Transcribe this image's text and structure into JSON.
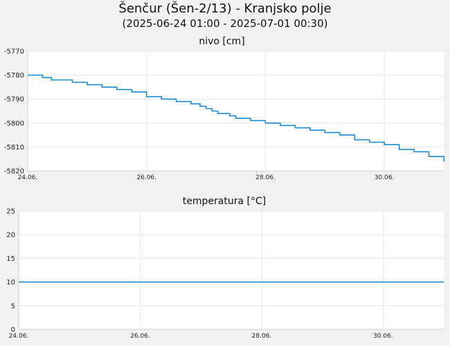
{
  "header": {
    "title": "Šenčur (Šen-2/13) - Kranjsko polje",
    "subtitle": "(2025-06-24 01:00 - 2025-07-01 00:30)"
  },
  "chart_data": [
    {
      "type": "line",
      "title": "nivo [cm]",
      "ylim": [
        -5820,
        -5770
      ],
      "yticks": [
        -5770,
        -5780,
        -5790,
        -5800,
        -5810,
        -5820
      ],
      "xticks": [
        "24.06.",
        "26.06.",
        "28.06.",
        "30.06."
      ],
      "grid": true,
      "color": "#1a8ad4",
      "series": [
        {
          "x": [
            0,
            0.1,
            0.25,
            0.4,
            0.5,
            0.75,
            1.0,
            1.25,
            1.5,
            1.75,
            2.0,
            2.25,
            2.5,
            2.75,
            2.9,
            3.0,
            3.1,
            3.2,
            3.3,
            3.4,
            3.5,
            3.75,
            4.0,
            4.25,
            4.5,
            4.75,
            5.0,
            5.25,
            5.5,
            5.75,
            6.0,
            6.25,
            6.5,
            6.75,
            7.0
          ],
          "values": [
            -5780,
            -5780,
            -5781,
            -5782,
            -5782,
            -5783,
            -5784,
            -5785,
            -5786,
            -5787,
            -5789,
            -5790,
            -5791,
            -5792,
            -5793,
            -5794,
            -5795,
            -5796,
            -5796,
            -5797,
            -5798,
            -5799,
            -5800,
            -5801,
            -5802,
            -5803,
            -5804,
            -5805,
            -5807,
            -5808,
            -5809,
            -5811,
            -5812,
            -5814,
            -5816
          ]
        }
      ]
    },
    {
      "type": "line",
      "title": "temperatura [°C]",
      "ylim": [
        0,
        25
      ],
      "yticks": [
        25,
        20,
        15,
        10,
        5,
        0
      ],
      "xticks": [
        "24.06.",
        "26.06.",
        "28.06.",
        "30.06."
      ],
      "grid": true,
      "color": "#1a8ad4",
      "series": [
        {
          "x": [
            0,
            7.0
          ],
          "values": [
            10,
            10
          ]
        }
      ]
    }
  ]
}
